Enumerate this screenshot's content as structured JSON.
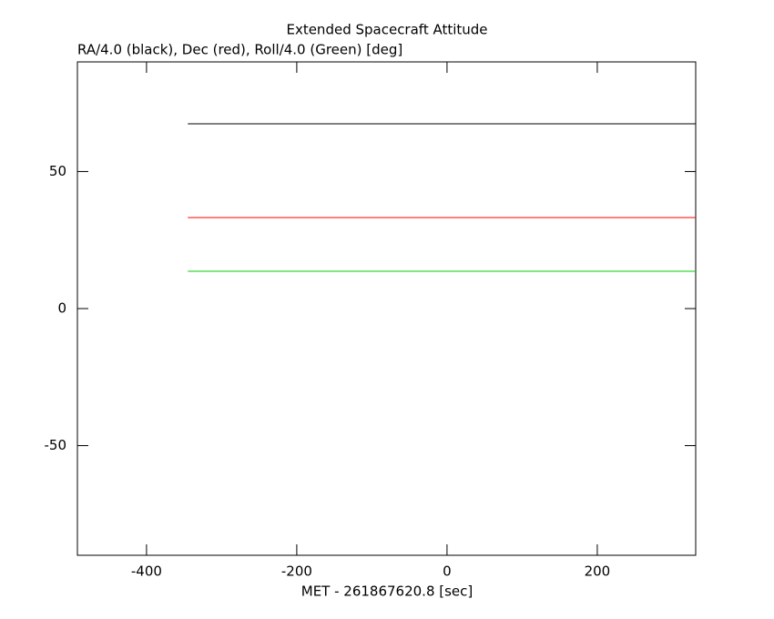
{
  "chart_data": {
    "type": "line",
    "title": "Extended Spacecraft Attitude",
    "subtitle": "RA/4.0 (black), Dec (red), Roll/4.0 (Green) [deg]",
    "x_label": "MET - 261867620.8 [sec]",
    "x": [
      -345,
      331
    ],
    "series": [
      {
        "name": "RA/4.0",
        "color": "#000000",
        "values": [
          67.4,
          67.4
        ]
      },
      {
        "name": "Dec",
        "color": "#ff0000",
        "values": [
          33.2,
          33.2
        ]
      },
      {
        "name": "Roll/4.0",
        "color": "#00cc00",
        "values": [
          13.6,
          13.6
        ]
      }
    ],
    "xlim": [
      -492,
      331
    ],
    "xticks": [
      -400,
      -200,
      0,
      200
    ],
    "ylim": [
      -90,
      90
    ],
    "yticks": [
      -50,
      0,
      50
    ]
  }
}
